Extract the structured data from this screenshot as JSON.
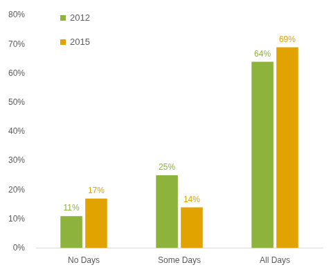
{
  "chart_data": {
    "type": "bar",
    "categories": [
      "No Days",
      "Some Days",
      "All Days"
    ],
    "series": [
      {
        "name": "2012",
        "color": "#8db33c",
        "values": [
          11,
          25,
          64
        ],
        "value_labels": [
          "11%",
          "25%",
          "64%"
        ]
      },
      {
        "name": "2015",
        "color": "#e0a300",
        "values": [
          17,
          14,
          69
        ],
        "value_labels": [
          "17%",
          "14%",
          "69%"
        ]
      }
    ],
    "ylim": [
      0,
      80
    ],
    "yticks": [
      {
        "value": 0,
        "label": "0%"
      },
      {
        "value": 10,
        "label": "10%"
      },
      {
        "value": 20,
        "label": "20%"
      },
      {
        "value": 30,
        "label": "30%"
      },
      {
        "value": 40,
        "label": "40%"
      },
      {
        "value": 50,
        "label": "50%"
      },
      {
        "value": 60,
        "label": "60%"
      },
      {
        "value": 70,
        "label": "70%"
      },
      {
        "value": 80,
        "label": "80%"
      }
    ],
    "grid": false,
    "legend": "upper left",
    "data_labels": true
  }
}
